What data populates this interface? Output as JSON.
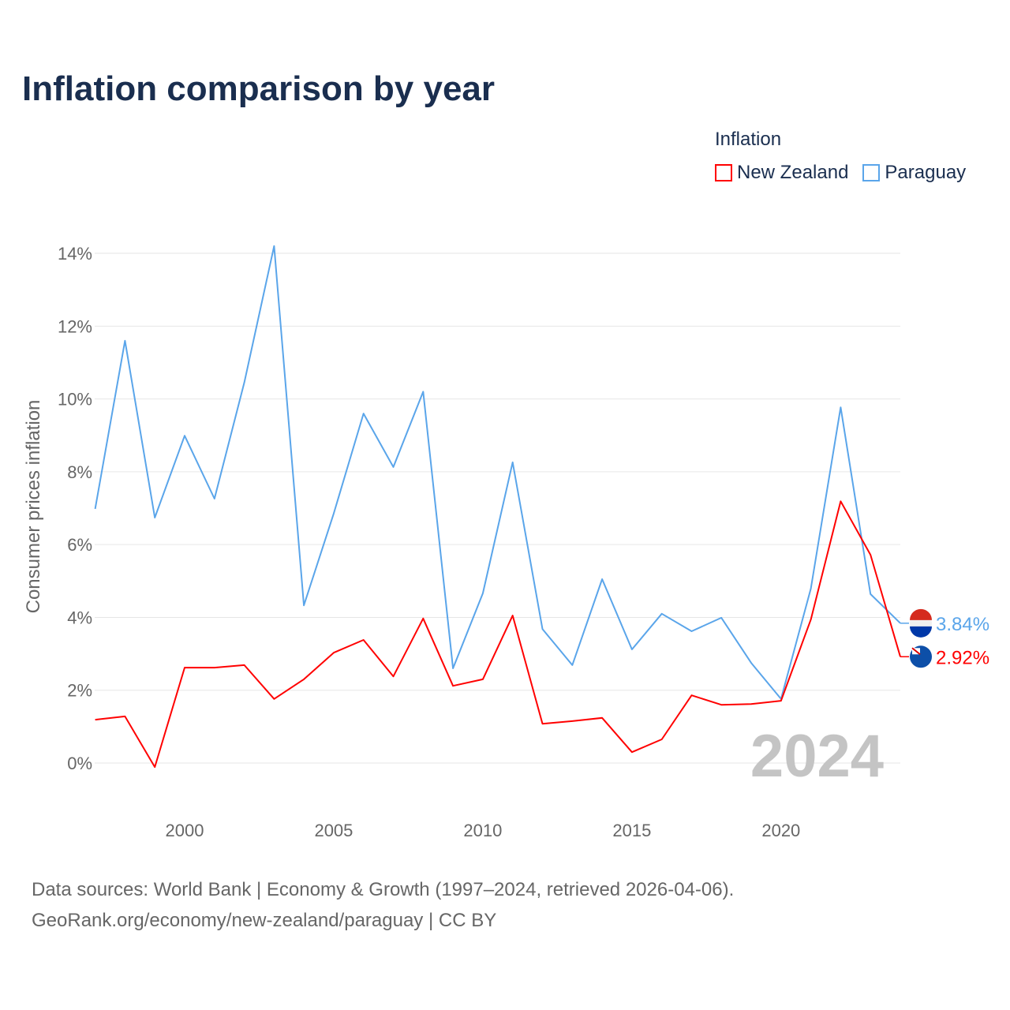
{
  "title": "Inflation comparison by year",
  "legend": {
    "title": "Inflation",
    "items": [
      {
        "label": "New Zealand",
        "color": "#ff0000"
      },
      {
        "label": "Paraguay",
        "color": "#5aa5ea"
      }
    ]
  },
  "source": {
    "line1": "Data sources: World Bank | Economy & Growth (1997–2024, retrieved 2026-04-06).",
    "line2": "GeoRank.org/economy/new-zealand/paraguay | CC BY"
  },
  "chart_data": {
    "type": "line",
    "title": "Inflation comparison by year",
    "xlabel": "",
    "ylabel": "Consumer prices inflation",
    "watermark": "2024",
    "x": [
      1997,
      1998,
      1999,
      2000,
      2001,
      2002,
      2003,
      2004,
      2005,
      2006,
      2007,
      2008,
      2009,
      2010,
      2011,
      2012,
      2013,
      2014,
      2015,
      2016,
      2017,
      2018,
      2019,
      2020,
      2021,
      2022,
      2023,
      2024
    ],
    "xlim": [
      1997,
      2024
    ],
    "ylim": [
      -0.5,
      14.5
    ],
    "xticks": [
      2000,
      2005,
      2010,
      2015,
      2020
    ],
    "yticks": [
      0,
      2,
      4,
      6,
      8,
      10,
      12,
      14
    ],
    "ytick_labels": [
      "0%",
      "2%",
      "4%",
      "6%",
      "8%",
      "10%",
      "12%",
      "14%"
    ],
    "xtick_labels": [
      "2000",
      "2005",
      "2010",
      "2015",
      "2020"
    ],
    "grid": true,
    "legend_position": "top-right",
    "series": [
      {
        "name": "Paraguay",
        "color": "#5aa5ea",
        "end_label": "3.84%",
        "values": [
          6.98,
          11.6,
          6.74,
          8.99,
          7.26,
          10.45,
          14.2,
          4.33,
          6.85,
          9.6,
          8.13,
          10.2,
          2.6,
          4.66,
          8.26,
          3.68,
          2.69,
          5.05,
          3.12,
          4.1,
          3.62,
          3.99,
          2.75,
          1.76,
          4.79,
          9.77,
          4.64,
          3.84
        ]
      },
      {
        "name": "New Zealand",
        "color": "#ff0000",
        "end_label": "2.92%",
        "values": [
          1.19,
          1.28,
          -0.11,
          2.62,
          2.62,
          2.69,
          1.76,
          2.3,
          3.03,
          3.38,
          2.38,
          3.97,
          2.12,
          2.3,
          4.05,
          1.08,
          1.15,
          1.24,
          0.3,
          0.65,
          1.86,
          1.6,
          1.62,
          1.71,
          3.94,
          7.19,
          5.72,
          2.92
        ]
      }
    ]
  }
}
